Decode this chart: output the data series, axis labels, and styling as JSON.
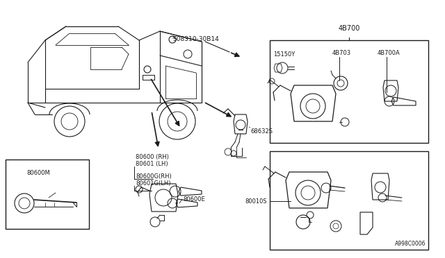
{
  "bg_color": "#ffffff",
  "line_color": "#1a1a1a",
  "fig_width": 6.4,
  "fig_height": 3.72,
  "dpi": 100,
  "labels": {
    "part_4B700": "4B700",
    "part_15150Y": "15150Y",
    "part_4B703": "4B703",
    "part_4B700A": "4B700A",
    "part_68632S": "68632S",
    "part_80600_RH": "80600 (RH)",
    "part_80601_LH": "80601 (LH)",
    "part_80600G_RH": "80600G(RH)",
    "part_80601G_LH": "80601G(LH)",
    "part_80600E": "80600E",
    "part_80600M": "80600M",
    "part_80010S": "80010S",
    "part_callout": "S08310-30B14",
    "diagram_num": "A998C0006"
  },
  "font_size": 7,
  "font_size_small": 6
}
